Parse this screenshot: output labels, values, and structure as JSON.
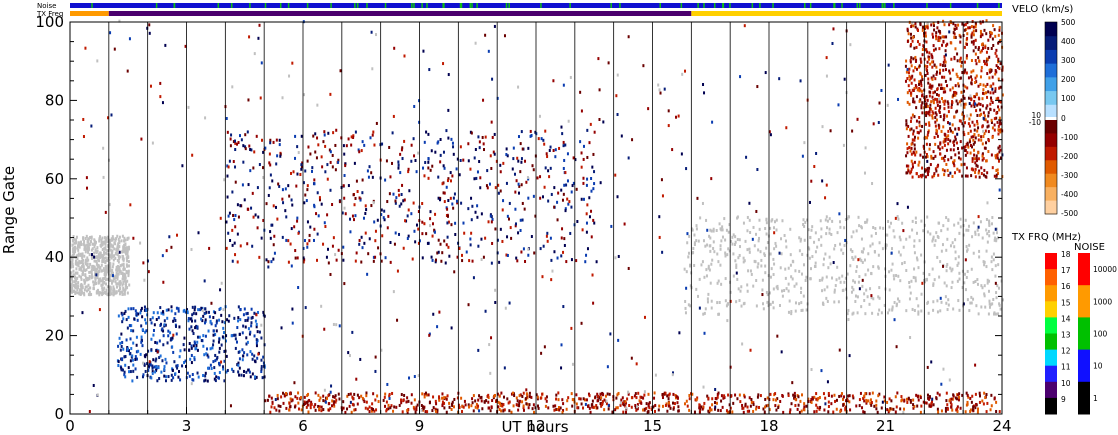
{
  "chart_data": {
    "type": "heatmap",
    "title": "",
    "xlabel": "UT hours",
    "ylabel": "Range Gate",
    "xlim": [
      0,
      24
    ],
    "ylim": [
      0,
      100
    ],
    "x_ticks": [
      "0",
      "3",
      "6",
      "9",
      "12",
      "15",
      "18",
      "21",
      "24"
    ],
    "y_ticks": [
      "0",
      "20",
      "40",
      "60",
      "80",
      "100"
    ],
    "top_bars": {
      "noise_label": "Noise",
      "txfreq_label": "TX Freq",
      "noise_colors": [
        "#1010d0",
        "#10c010"
      ],
      "txfreq_segments": [
        {
          "from": 0,
          "to": 1,
          "color": "#ff9a00"
        },
        {
          "from": 1,
          "to": 16,
          "color": "#4b006e"
        },
        {
          "from": 16,
          "to": 24,
          "color": "#ffd000"
        }
      ]
    },
    "scatter_regions": [
      {
        "name": "ground-scatter band",
        "x": [
          0.0,
          1.5
        ],
        "y": [
          30,
          45
        ],
        "kind": "gray"
      },
      {
        "name": "ground-scatter band",
        "x": [
          15.8,
          24.0
        ],
        "y": [
          25,
          50
        ],
        "kind": "gray"
      },
      {
        "name": "near-range band",
        "x": [
          1.2,
          5.0
        ],
        "y": [
          8,
          27
        ],
        "kind": "positive"
      },
      {
        "name": "low-gate band",
        "x": [
          5.0,
          24.0
        ],
        "y": [
          0,
          5
        ],
        "kind": "negative"
      },
      {
        "name": "mid echoes",
        "x": [
          4.0,
          13.5
        ],
        "y": [
          38,
          72
        ],
        "kind": "mixed"
      },
      {
        "name": "late rising echoes",
        "x": [
          21.5,
          24.0
        ],
        "y": [
          60,
          100
        ],
        "kind": "negative"
      }
    ],
    "velocity_colorbar": {
      "label": "VELO (km/s)",
      "ticks": [
        "500",
        "400",
        "300",
        "200",
        "100",
        "0",
        "10",
        "-10",
        "-100",
        "-200",
        "-300",
        "-400",
        "-500"
      ],
      "positive_colors": [
        "#b8e0ff",
        "#78c8f0",
        "#40a0e8",
        "#1e6ed8",
        "#0a3cb0",
        "#061c78",
        "#000050"
      ],
      "negative_colors": [
        "#6a0000",
        "#940000",
        "#c01a00",
        "#e05a00",
        "#f08a20",
        "#f8b060",
        "#ffd0a0"
      ]
    },
    "txfreq_colorbar": {
      "label": "TX FRQ (MHz)",
      "ticks": [
        "18",
        "17",
        "16",
        "15",
        "14",
        "13",
        "12",
        "11",
        "10",
        "9"
      ],
      "colors": [
        "#ff0000",
        "#ff6000",
        "#ff9a00",
        "#ffd000",
        "#00ff40",
        "#00c000",
        "#00d8ff",
        "#2020ff",
        "#4b006e",
        "#000000"
      ]
    },
    "noise_colorbar": {
      "label": "NOISE",
      "ticks": [
        "10000",
        "1000",
        "100",
        "10",
        "1"
      ],
      "colors": [
        "#ff0000",
        "#ff9a00",
        "#00c000",
        "#1010ff",
        "#000000"
      ]
    }
  }
}
